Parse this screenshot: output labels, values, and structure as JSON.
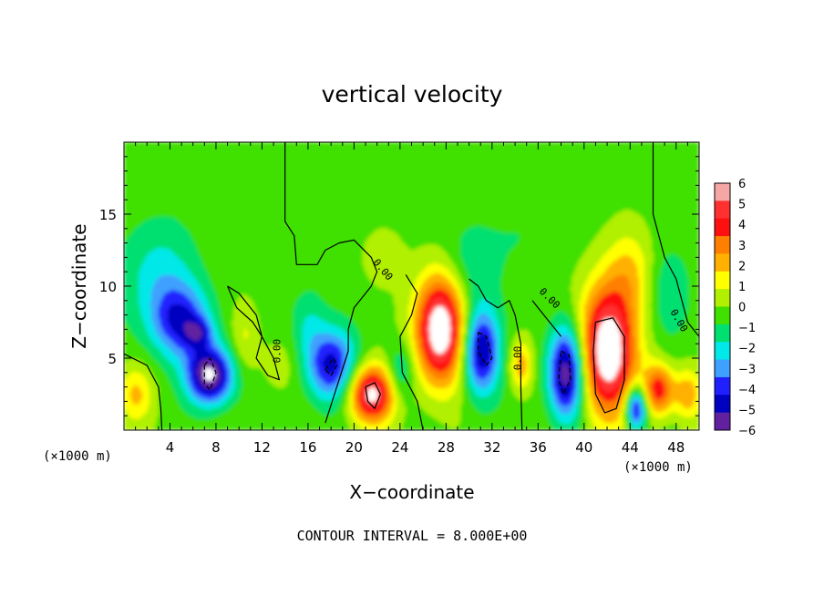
{
  "chart_data": {
    "type": "heatmap",
    "title": "vertical velocity",
    "xlabel": "X−coordinate",
    "ylabel": "Z−coordinate",
    "x_unit_left": "(×1000 m)",
    "x_unit_right": "(×1000 m)",
    "footer": "CONTOUR INTERVAL = 8.000E+00",
    "xlim": [
      0,
      50
    ],
    "ylim": [
      0,
      20
    ],
    "x_ticks": [
      4,
      8,
      12,
      16,
      20,
      24,
      28,
      32,
      36,
      40,
      44,
      48
    ],
    "x_tick_labels": [
      "4",
      "8",
      "12",
      "16",
      "20",
      "24",
      "28",
      "32",
      "36",
      "40",
      "44",
      "48"
    ],
    "y_ticks": [
      5,
      10,
      15
    ],
    "y_tick_labels": [
      "5",
      "10",
      "15"
    ],
    "colorbar": {
      "levels": [
        6,
        5,
        4,
        3,
        2,
        1,
        0,
        -1,
        -2,
        -3,
        -4,
        -5,
        -6
      ],
      "labels": [
        "6",
        "5",
        "4",
        "3",
        "2",
        "1",
        "0",
        "−1",
        "−2",
        "−3",
        "−4",
        "−5",
        "−6"
      ],
      "colors": [
        "#f7a6a6",
        "#ff3030",
        "#ff1010",
        "#ff8000",
        "#ffb000",
        "#ffff00",
        "#b0f000",
        "#40e000",
        "#00e070",
        "#00e8e8",
        "#40a0ff",
        "#2020ff",
        "#0000c0",
        "#6020a0"
      ]
    },
    "background_color": "#5ae23a",
    "blobs": [
      {
        "x": 3.0,
        "z": 10.5,
        "sx": 3.2,
        "sz": 4.0,
        "w": -2.2
      },
      {
        "x": 5.0,
        "z": 7.5,
        "sx": 2.5,
        "sz": 2.5,
        "w": -4.2
      },
      {
        "x": 6.5,
        "z": 6.8,
        "sx": 1.2,
        "sz": 1.0,
        "w": -2.5
      },
      {
        "x": 7.5,
        "z": 3.8,
        "sx": 2.0,
        "sz": 2.0,
        "w": -7.0
      },
      {
        "x": 1.0,
        "z": 2.5,
        "sx": 1.5,
        "sz": 2.0,
        "w": 2.5
      },
      {
        "x": 10.5,
        "z": 6.5,
        "sx": 1.2,
        "sz": 2.5,
        "w": 1.5
      },
      {
        "x": 13.5,
        "z": 4.5,
        "sx": 1.8,
        "sz": 2.0,
        "w": 0.9
      },
      {
        "x": 18.0,
        "z": 4.5,
        "sx": 2.2,
        "sz": 2.5,
        "w": -5.0
      },
      {
        "x": 16.0,
        "z": 7.5,
        "sx": 1.5,
        "sz": 2.5,
        "w": -1.5
      },
      {
        "x": 21.5,
        "z": 2.5,
        "sx": 2.0,
        "sz": 2.0,
        "w": 7.0
      },
      {
        "x": 24.0,
        "z": 4.0,
        "sx": 1.2,
        "sz": 2.0,
        "w": -2.2
      },
      {
        "x": 27.5,
        "z": 7.0,
        "sx": 2.2,
        "sz": 3.8,
        "w": 8.0
      },
      {
        "x": 31.0,
        "z": 5.5,
        "sx": 1.6,
        "sz": 3.0,
        "w": -6.0
      },
      {
        "x": 30.0,
        "z": 11.5,
        "sx": 2.5,
        "sz": 3.0,
        "w": -1.5
      },
      {
        "x": 34.5,
        "z": 4.5,
        "sx": 1.0,
        "sz": 1.8,
        "w": 3.0
      },
      {
        "x": 38.5,
        "z": 4.0,
        "sx": 1.6,
        "sz": 3.2,
        "w": -7.0
      },
      {
        "x": 42.0,
        "z": 5.5,
        "sx": 2.5,
        "sz": 4.5,
        "w": 8.0
      },
      {
        "x": 44.5,
        "z": 1.5,
        "sx": 0.9,
        "sz": 1.5,
        "w": -6.0
      },
      {
        "x": 46.5,
        "z": 2.8,
        "sx": 1.3,
        "sz": 1.8,
        "w": 5.0
      },
      {
        "x": 49.0,
        "z": 2.5,
        "sx": 1.2,
        "sz": 1.8,
        "w": 3.0
      },
      {
        "x": 44.0,
        "z": 11.0,
        "sx": 2.0,
        "sz": 3.0,
        "w": 2.0
      },
      {
        "x": 47.5,
        "z": 9.5,
        "sx": 1.8,
        "sz": 3.0,
        "w": -1.5
      },
      {
        "x": 35.0,
        "z": 13.5,
        "sx": 3.0,
        "sz": 2.5,
        "w": -0.6
      },
      {
        "x": 22.5,
        "z": 12.0,
        "sx": 2.0,
        "sz": 2.0,
        "w": 0.8
      }
    ],
    "contours": [
      {
        "style": "solid",
        "points": [
          [
            14.0,
            20
          ],
          [
            14.0,
            14.5
          ],
          [
            14.8,
            13.5
          ],
          [
            15.0,
            11.5
          ],
          [
            16.8,
            11.5
          ],
          [
            17.5,
            12.5
          ],
          [
            18.7,
            13.0
          ],
          [
            20.0,
            13.2
          ],
          [
            21.5,
            12.0
          ],
          [
            22.0,
            11.0
          ],
          [
            21.5,
            10.0
          ],
          [
            20.0,
            8.5
          ],
          [
            19.5,
            7.0
          ],
          [
            19.5,
            5.5
          ],
          [
            18.5,
            3.0
          ],
          [
            17.5,
            0.5
          ]
        ]
      },
      {
        "style": "solid",
        "points": [
          [
            46.0,
            20
          ],
          [
            46.0,
            15.0
          ],
          [
            46.5,
            13.5
          ],
          [
            47.0,
            12.0
          ],
          [
            48.0,
            10.5
          ],
          [
            48.5,
            9.0
          ],
          [
            49.0,
            7.5
          ],
          [
            50.0,
            6.5
          ]
        ]
      },
      {
        "style": "solid",
        "points": [
          [
            0,
            5.3
          ],
          [
            2.0,
            4.5
          ],
          [
            3.0,
            3.0
          ],
          [
            3.2,
            1.5
          ],
          [
            3.3,
            0
          ]
        ]
      },
      {
        "style": "solid",
        "points": [
          [
            9.0,
            10.0
          ],
          [
            10.0,
            9.5
          ],
          [
            11.5,
            8.0
          ],
          [
            12.0,
            6.5
          ],
          [
            11.5,
            5.0
          ],
          [
            12.5,
            3.8
          ],
          [
            13.5,
            3.5
          ],
          [
            13.0,
            5.0
          ],
          [
            12.0,
            6.5
          ],
          [
            11.2,
            7.5
          ],
          [
            9.8,
            8.5
          ],
          [
            9.0,
            10.0
          ]
        ]
      },
      {
        "style": "solid",
        "points": [
          [
            24.5,
            10.8
          ],
          [
            25.5,
            9.5
          ],
          [
            25.0,
            8.0
          ],
          [
            24.0,
            6.5
          ],
          [
            24.2,
            4.0
          ],
          [
            25.5,
            2.0
          ],
          [
            26.0,
            0
          ]
        ]
      },
      {
        "style": "solid",
        "points": [
          [
            30.0,
            10.5
          ],
          [
            30.8,
            10.0
          ],
          [
            31.5,
            9.0
          ],
          [
            32.5,
            8.5
          ],
          [
            33.5,
            9.0
          ],
          [
            34.0,
            8.0
          ],
          [
            34.5,
            6.0
          ],
          [
            34.5,
            3.0
          ],
          [
            34.6,
            0
          ]
        ]
      },
      {
        "style": "solid",
        "points": [
          [
            35.5,
            9.0
          ],
          [
            36.5,
            8.0
          ],
          [
            37.5,
            7.0
          ],
          [
            38.0,
            6.5
          ]
        ]
      },
      {
        "style": "solid",
        "points": [
          [
            41.0,
            7.5
          ],
          [
            42.5,
            7.8
          ],
          [
            43.5,
            6.5
          ],
          [
            43.5,
            3.5
          ],
          [
            42.8,
            1.5
          ],
          [
            41.8,
            1.2
          ],
          [
            41.0,
            2.5
          ],
          [
            40.8,
            5.5
          ],
          [
            41.0,
            7.5
          ]
        ]
      },
      {
        "style": "dashed",
        "points": [
          [
            7.0,
            4.5
          ],
          [
            7.5,
            5.0
          ],
          [
            8.0,
            4.0
          ],
          [
            7.5,
            2.8
          ],
          [
            7.0,
            3.2
          ],
          [
            7.0,
            4.5
          ]
        ]
      },
      {
        "style": "dashed",
        "points": [
          [
            17.5,
            4.2
          ],
          [
            18.2,
            5.0
          ],
          [
            18.5,
            4.5
          ],
          [
            18.0,
            3.8
          ],
          [
            17.5,
            4.2
          ]
        ]
      },
      {
        "style": "dashed",
        "points": [
          [
            30.8,
            6.8
          ],
          [
            31.5,
            6.5
          ],
          [
            32.0,
            5.0
          ],
          [
            31.5,
            4.5
          ],
          [
            30.8,
            5.5
          ],
          [
            30.8,
            6.8
          ]
        ]
      },
      {
        "style": "dashed",
        "points": [
          [
            38.0,
            5.5
          ],
          [
            38.7,
            5.2
          ],
          [
            38.8,
            3.5
          ],
          [
            38.2,
            2.5
          ],
          [
            37.8,
            3.5
          ],
          [
            38.0,
            5.5
          ]
        ]
      },
      {
        "style": "solid",
        "points": [
          [
            21.0,
            3.0
          ],
          [
            21.8,
            3.3
          ],
          [
            22.3,
            2.5
          ],
          [
            21.8,
            1.5
          ],
          [
            21.2,
            2.0
          ],
          [
            21.0,
            3.0
          ]
        ]
      }
    ],
    "zero_labels": [
      {
        "x": 13.6,
        "z": 5.5,
        "text": "0.00",
        "rotate": -90
      },
      {
        "x": 22.3,
        "z": 11.0,
        "text": "0.00",
        "rotate": 50
      },
      {
        "x": 34.5,
        "z": 5.0,
        "text": "0.00",
        "rotate": -90
      },
      {
        "x": 36.8,
        "z": 9.0,
        "text": "0.00",
        "rotate": 45
      },
      {
        "x": 48.0,
        "z": 7.5,
        "text": "0.00",
        "rotate": 60
      }
    ]
  }
}
